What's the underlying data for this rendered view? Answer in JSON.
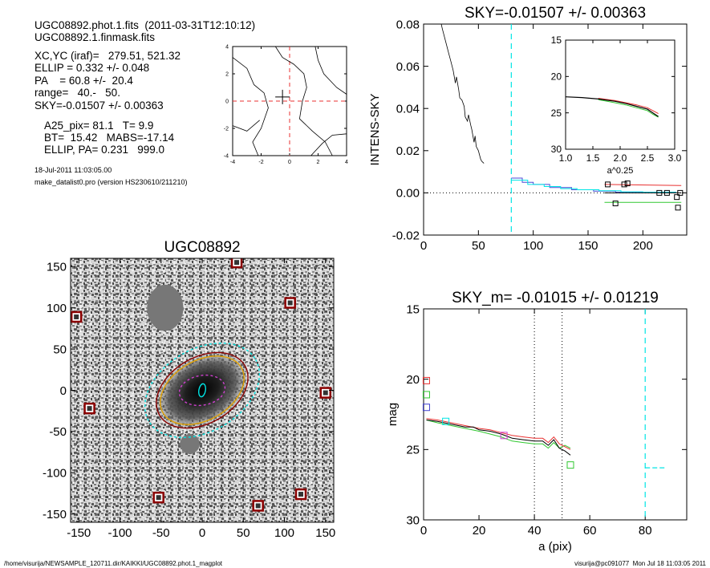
{
  "header": {
    "line1": "UGC08892.phot.1.fits  (2011-03-31T12:10:12)",
    "line2": "UGC08892.1.finmask.fits",
    "params": [
      "XC,YC (iraf)=   279.51, 521.32",
      "ELLIP = 0.332 +/- 0.048",
      "PA    = 60.8 +/-  20.4",
      "range=   40.-   50.",
      "SKY=-0.01507 +/- 0.00363"
    ],
    "params2": [
      "A25_pix= 81.1   T= 9.9",
      "BT=  15.42   MABS=-17.14",
      "ELLIP, PA= 0.231   999.0"
    ],
    "date": "18-Jul-2011 11:03:05.00",
    "program": "make_datalist0.pro (version HS230610/211210)"
  },
  "footer": {
    "path": "/home/visurija/NEWSAMPLE_120711.dir/KAIKKI/UGC08892.phot.1_magplot",
    "user": "visurija@pc091077  Mon Jul 18 11:03:05 2011"
  },
  "colors": {
    "cyan": "#00e5e5",
    "red": "#e83030",
    "green": "#30c830",
    "magenta": "#d040d0",
    "orange": "#e0a000",
    "dark_red": "#8b0000"
  },
  "chart_data": [
    {
      "id": "contour",
      "type": "contour",
      "xlim": [
        -4,
        4
      ],
      "ylim": [
        -4,
        4
      ],
      "xticks": [
        "-4",
        "-2",
        "0",
        "2",
        "4"
      ],
      "yticks": [
        "-4",
        "-2",
        "0",
        "2",
        "4"
      ],
      "center": [
        -0.5,
        0.3
      ],
      "contours": [
        [
          [
            -4,
            3.2
          ],
          [
            -3,
            2.4
          ],
          [
            -2.5,
            1.2
          ],
          [
            -1.8,
            0.6
          ],
          [
            -1.5,
            -0.5
          ],
          [
            -2,
            -2
          ],
          [
            -2.6,
            -3
          ],
          [
            -2.2,
            -4
          ]
        ],
        [
          [
            -1,
            4
          ],
          [
            -0.5,
            3.2
          ],
          [
            0.3,
            2.7
          ],
          [
            1,
            2
          ],
          [
            1.2,
            1
          ],
          [
            0.9,
            0
          ],
          [
            0.7,
            -1.3
          ],
          [
            1.6,
            -2.2
          ],
          [
            2.5,
            -3
          ],
          [
            3,
            -4
          ]
        ],
        [
          [
            1.8,
            4
          ],
          [
            2,
            3
          ],
          [
            2.4,
            2
          ],
          [
            3.3,
            1
          ],
          [
            4,
            0.5
          ]
        ],
        [
          [
            -4,
            -1.8
          ],
          [
            -3,
            -2.2
          ],
          [
            -2.1,
            -1.4
          ]
        ],
        [
          [
            1.5,
            -4
          ],
          [
            2.3,
            -3.1
          ],
          [
            3,
            -2.5
          ],
          [
            4,
            -2.4
          ]
        ]
      ]
    },
    {
      "id": "sky",
      "type": "line",
      "title": "SKY=-0.01507 +/- 0.00363",
      "xlabel": "",
      "ylabel": "INTENS-SKY",
      "xlim": [
        0,
        240
      ],
      "ylim": [
        -0.02,
        0.08
      ],
      "xticks": [
        "0",
        "50",
        "100",
        "150",
        "200"
      ],
      "yticks": [
        "-0.02",
        "0.00",
        "0.02",
        "0.04",
        "0.06",
        "0.08"
      ],
      "profile": [
        [
          14,
          0.085
        ],
        [
          17,
          0.078
        ],
        [
          20,
          0.072
        ],
        [
          23,
          0.066
        ],
        [
          25,
          0.062
        ],
        [
          27,
          0.058
        ],
        [
          29,
          0.052
        ],
        [
          30,
          0.055
        ],
        [
          32,
          0.049
        ],
        [
          33,
          0.045
        ],
        [
          35,
          0.044
        ],
        [
          37,
          0.041
        ],
        [
          38,
          0.036
        ],
        [
          40,
          0.034
        ],
        [
          41,
          0.037
        ],
        [
          43,
          0.032
        ],
        [
          44,
          0.03
        ],
        [
          46,
          0.024
        ],
        [
          47,
          0.027
        ],
        [
          48,
          0.022
        ],
        [
          50,
          0.02
        ],
        [
          51,
          0.018
        ],
        [
          52,
          0.016
        ],
        [
          53,
          0.015
        ],
        [
          55,
          0.014
        ]
      ],
      "cyan_x": 80,
      "steps_cyan": [
        [
          80,
          0.006
        ],
        [
          95,
          0.004
        ],
        [
          110,
          0.003
        ],
        [
          125,
          0.002
        ],
        [
          140,
          0.0015
        ],
        [
          160,
          0.001
        ],
        [
          180,
          0.0005
        ],
        [
          200,
          0.0003
        ],
        [
          230,
          0.0002
        ]
      ],
      "steps_blue": [
        [
          80,
          0.007
        ],
        [
          90,
          0.005
        ],
        [
          100,
          0.004
        ],
        [
          115,
          0.0025
        ],
        [
          135,
          0.0015
        ],
        [
          155,
          0.0008
        ],
        [
          175,
          0.0003
        ],
        [
          230,
          0.0
        ]
      ],
      "red_hline": [
        [
          165,
          0.004
        ],
        [
          235,
          0.0035
        ]
      ],
      "green_hline": [
        [
          165,
          -0.0045
        ],
        [
          235,
          -0.0045
        ]
      ],
      "black_hline": [
        [
          165,
          0.0
        ],
        [
          235,
          0.0
        ]
      ],
      "squares": [
        [
          168,
          0.004
        ],
        [
          175,
          -0.005
        ],
        [
          183,
          0.004
        ],
        [
          186,
          0.0045
        ],
        [
          215,
          0.0
        ],
        [
          222,
          0.0
        ],
        [
          231,
          -0.002
        ],
        [
          234,
          0.0
        ],
        [
          232,
          -0.007
        ]
      ],
      "inset": {
        "xlabel": "a^0.25",
        "xlim": [
          1.0,
          3.0
        ],
        "ylim": [
          15,
          30
        ],
        "xticks": [
          "1.0",
          "1.5",
          "2.0",
          "2.5",
          "3.0"
        ],
        "yticks": [
          "15",
          "20",
          "25",
          "30"
        ],
        "black": [
          [
            1.0,
            22.8
          ],
          [
            1.3,
            22.9
          ],
          [
            1.6,
            23.1
          ],
          [
            1.9,
            23.4
          ],
          [
            2.1,
            23.7
          ],
          [
            2.3,
            24.1
          ],
          [
            2.5,
            24.5
          ],
          [
            2.6,
            25.0
          ],
          [
            2.7,
            25.5
          ]
        ],
        "red": [
          [
            1.6,
            23.0
          ],
          [
            1.9,
            23.3
          ],
          [
            2.1,
            23.6
          ],
          [
            2.3,
            23.9
          ],
          [
            2.5,
            24.3
          ],
          [
            2.6,
            24.7
          ],
          [
            2.7,
            25.1
          ]
        ],
        "green": [
          [
            1.6,
            23.2
          ],
          [
            1.9,
            23.6
          ],
          [
            2.1,
            23.9
          ],
          [
            2.3,
            24.3
          ],
          [
            2.5,
            24.7
          ],
          [
            2.6,
            25.2
          ],
          [
            2.7,
            25.6
          ]
        ]
      }
    },
    {
      "id": "image",
      "type": "image",
      "title": "UGC08892",
      "xlim": [
        -160,
        160
      ],
      "ylim": [
        -160,
        160
      ],
      "xticks": [
        "-150",
        "-100",
        "-50",
        "0",
        "50",
        "100",
        "150"
      ],
      "yticks": [
        "-150",
        "-100",
        "-50",
        "0",
        "50",
        "100",
        "150"
      ],
      "stars": [
        [
          42,
          155
        ],
        [
          -153,
          89
        ],
        [
          107,
          106
        ],
        [
          150,
          -3
        ],
        [
          -137,
          -22
        ],
        [
          -53,
          -130
        ],
        [
          68,
          -140
        ],
        [
          120,
          -126
        ]
      ],
      "mask_blobs": [
        [
          -45,
          100,
          22,
          28
        ],
        [
          -15,
          -65,
          12,
          12
        ]
      ],
      "ellipses": [
        {
          "a": 75,
          "b": 50,
          "pa": 30,
          "color": "cyan",
          "dash": true
        },
        {
          "a": 60,
          "b": 40,
          "pa": 30,
          "color": "dark_red",
          "dash": false
        },
        {
          "a": 55,
          "b": 36,
          "pa": 30,
          "color": "orange",
          "dash": false
        },
        {
          "a": 28,
          "b": 18,
          "pa": 10,
          "color": "magenta",
          "dash": true
        },
        {
          "a": 8,
          "b": 4,
          "pa": 80,
          "color": "cyan",
          "dash": false
        }
      ]
    },
    {
      "id": "mag",
      "type": "line",
      "title": "SKY_m= -0.01015 +/- 0.01219",
      "xlabel": "a (pix)",
      "ylabel": "mag",
      "xlim": [
        0,
        95
      ],
      "ylim": [
        30,
        15
      ],
      "xticks": [
        "0",
        "20",
        "40",
        "60",
        "80"
      ],
      "yticks": [
        "15",
        "20",
        "25",
        "30"
      ],
      "vlines_dotted": [
        40,
        50
      ],
      "cyan_vline": 80,
      "cyan_hseg": [
        [
          80,
          26.3
        ],
        [
          87,
          26.3
        ]
      ],
      "black": [
        [
          1,
          22.9
        ],
        [
          5,
          23.0
        ],
        [
          10,
          23.2
        ],
        [
          15,
          23.4
        ],
        [
          18,
          23.4
        ],
        [
          20,
          23.6
        ],
        [
          24,
          23.7
        ],
        [
          28,
          23.9
        ],
        [
          32,
          24.2
        ],
        [
          36,
          24.3
        ],
        [
          40,
          24.4
        ],
        [
          43,
          24.4
        ],
        [
          45,
          24.7
        ],
        [
          47,
          24.3
        ],
        [
          49,
          24.9
        ],
        [
          51,
          25.1
        ],
        [
          53,
          25.4
        ]
      ],
      "red": [
        [
          1,
          22.8
        ],
        [
          5,
          22.9
        ],
        [
          10,
          23.1
        ],
        [
          15,
          23.3
        ],
        [
          20,
          23.5
        ],
        [
          24,
          23.6
        ],
        [
          28,
          23.8
        ],
        [
          32,
          24.0
        ],
        [
          36,
          24.1
        ],
        [
          40,
          24.2
        ],
        [
          43,
          24.2
        ],
        [
          45,
          24.5
        ],
        [
          47,
          24.1
        ],
        [
          49,
          24.6
        ],
        [
          51,
          24.8
        ],
        [
          53,
          25.0
        ]
      ],
      "green": [
        [
          1,
          22.9
        ],
        [
          5,
          23.1
        ],
        [
          10,
          23.3
        ],
        [
          15,
          23.5
        ],
        [
          20,
          23.7
        ],
        [
          24,
          23.9
        ],
        [
          28,
          24.1
        ],
        [
          32,
          24.4
        ],
        [
          36,
          24.5
        ],
        [
          40,
          24.6
        ],
        [
          43,
          24.6
        ],
        [
          45,
          24.9
        ],
        [
          47,
          24.5
        ],
        [
          49,
          24.9
        ],
        [
          51,
          24.7
        ],
        [
          53,
          24.9
        ]
      ],
      "squares": [
        {
          "x": 1,
          "y": 20.1,
          "color": "red"
        },
        {
          "x": 1,
          "y": 21.1,
          "color": "green"
        },
        {
          "x": 1,
          "y": 22.0,
          "color": "blue"
        },
        {
          "x": 8,
          "y": 23.0,
          "color": "cyan"
        },
        {
          "x": 29,
          "y": 24.0,
          "color": "magenta"
        },
        {
          "x": 53,
          "y": 26.1,
          "color": "green"
        }
      ]
    }
  ]
}
